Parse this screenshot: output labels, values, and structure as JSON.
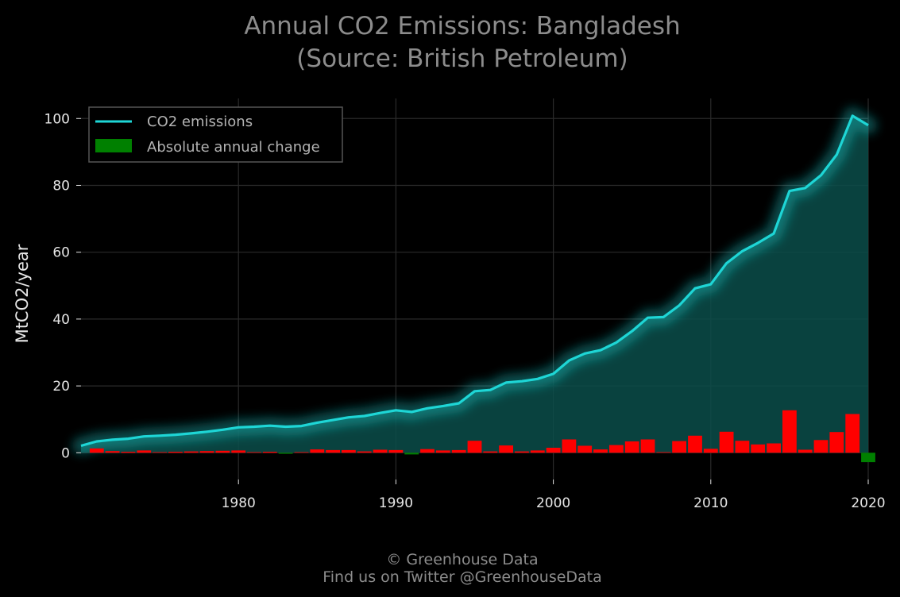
{
  "title_line1": "Annual CO2 Emissions: Bangladesh",
  "title_line2": "(Source: British Petroleum)",
  "footer_line1": "© Greenhouse Data",
  "footer_line2": "Find us on Twitter @GreenhouseData",
  "colors": {
    "background": "#000000",
    "line": "#1ed6d6",
    "area": "#0b4d4a",
    "increase": "#ff0000",
    "decrease": "#008000",
    "legend_patch": "#008000",
    "grid": "#2a2a2a"
  },
  "chart_data": {
    "type": "line",
    "ylabel": "MtCO2/year",
    "xlabel": "",
    "xlim": [
      1970,
      2020
    ],
    "ylim": [
      -8,
      106
    ],
    "xticks": [
      1980,
      1990,
      2000,
      2010,
      2020
    ],
    "yticks": [
      0,
      20,
      40,
      60,
      80,
      100
    ],
    "grid": true,
    "legend_position": "top-left",
    "legend": [
      "CO2 emissions",
      "Absolute annual change"
    ],
    "series": [
      {
        "name": "CO2 emissions",
        "type": "line",
        "x": [
          1970,
          1971,
          1972,
          1973,
          1974,
          1975,
          1976,
          1977,
          1978,
          1979,
          1980,
          1981,
          1982,
          1983,
          1984,
          1985,
          1986,
          1987,
          1988,
          1989,
          1990,
          1991,
          1992,
          1993,
          1994,
          1995,
          1996,
          1997,
          1998,
          1999,
          2000,
          2001,
          2002,
          2003,
          2004,
          2005,
          2006,
          2007,
          2008,
          2009,
          2010,
          2011,
          2012,
          2013,
          2014,
          2015,
          2016,
          2017,
          2018,
          2019,
          2020
        ],
        "values": [
          2.1,
          3.4,
          3.9,
          4.2,
          4.9,
          5.1,
          5.4,
          5.8,
          6.3,
          6.9,
          7.6,
          7.8,
          8.1,
          7.8,
          8.0,
          9.0,
          9.8,
          10.6,
          11.0,
          11.9,
          12.7,
          12.2,
          13.3,
          14.0,
          14.8,
          18.4,
          18.8,
          21.0,
          21.4,
          22.1,
          23.6,
          27.6,
          29.7,
          30.7,
          33.0,
          36.4,
          40.4,
          40.6,
          44.1,
          49.2,
          50.4,
          56.7,
          60.3,
          62.8,
          65.6,
          78.3,
          79.2,
          83.0,
          89.2,
          100.8,
          98.0
        ]
      },
      {
        "name": "Absolute annual change",
        "type": "bar",
        "x": [
          1971,
          1972,
          1973,
          1974,
          1975,
          1976,
          1977,
          1978,
          1979,
          1980,
          1981,
          1982,
          1983,
          1984,
          1985,
          1986,
          1987,
          1988,
          1989,
          1990,
          1991,
          1992,
          1993,
          1994,
          1995,
          1996,
          1997,
          1998,
          1999,
          2000,
          2001,
          2002,
          2003,
          2004,
          2005,
          2006,
          2007,
          2008,
          2009,
          2010,
          2011,
          2012,
          2013,
          2014,
          2015,
          2016,
          2017,
          2018,
          2019,
          2020
        ],
        "values": [
          1.3,
          0.5,
          0.3,
          0.7,
          0.2,
          0.3,
          0.4,
          0.5,
          0.6,
          0.7,
          0.2,
          0.3,
          -0.3,
          0.2,
          1.0,
          0.8,
          0.8,
          0.4,
          0.9,
          0.8,
          -0.5,
          1.1,
          0.7,
          0.8,
          3.6,
          0.4,
          2.2,
          0.4,
          0.7,
          1.5,
          4.0,
          2.1,
          1.0,
          2.3,
          3.4,
          4.0,
          0.2,
          3.5,
          5.1,
          1.2,
          6.3,
          3.6,
          2.5,
          2.8,
          12.7,
          0.9,
          3.8,
          6.2,
          11.6,
          -2.8
        ]
      }
    ]
  }
}
